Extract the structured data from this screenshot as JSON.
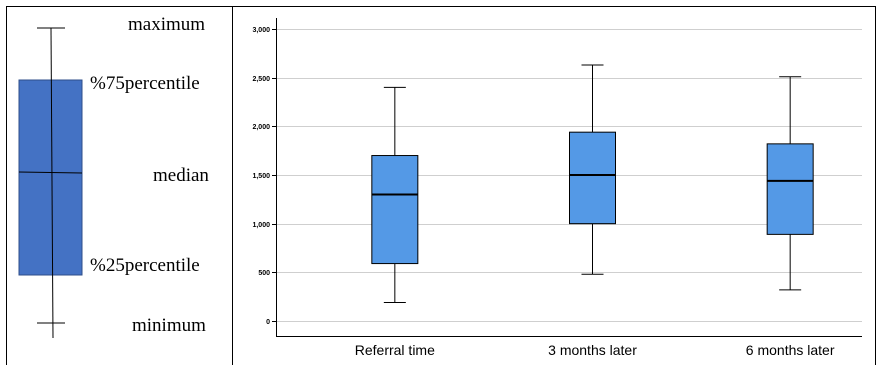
{
  "legend": {
    "labels": {
      "maximum": "maximum",
      "q3": "%75percentile",
      "median": "median",
      "q1": "%25percentile",
      "minimum": "minimum"
    },
    "box_color": "#4472C4"
  },
  "chart_data": {
    "type": "boxplot",
    "categories": [
      "Referral time",
      "3 months later",
      "6 months later"
    ],
    "boxes": [
      {
        "min": 190,
        "q1": 590,
        "median": 1300,
        "q3": 1700,
        "max": 2400
      },
      {
        "min": 480,
        "q1": 1000,
        "median": 1500,
        "q3": 1940,
        "max": 2630
      },
      {
        "min": 320,
        "q1": 890,
        "median": 1440,
        "q3": 1820,
        "max": 2510
      }
    ],
    "ylim": [
      0,
      3000
    ],
    "yticks": [
      0,
      500,
      1000,
      1500,
      2000,
      2500,
      3000
    ],
    "ytick_labels": [
      "0",
      "500",
      "1,000",
      "1,500",
      "2,000",
      "2,500",
      "3,000"
    ],
    "grid": true,
    "box_color": "#5499E6",
    "title": "",
    "xlabel": "",
    "ylabel": ""
  }
}
